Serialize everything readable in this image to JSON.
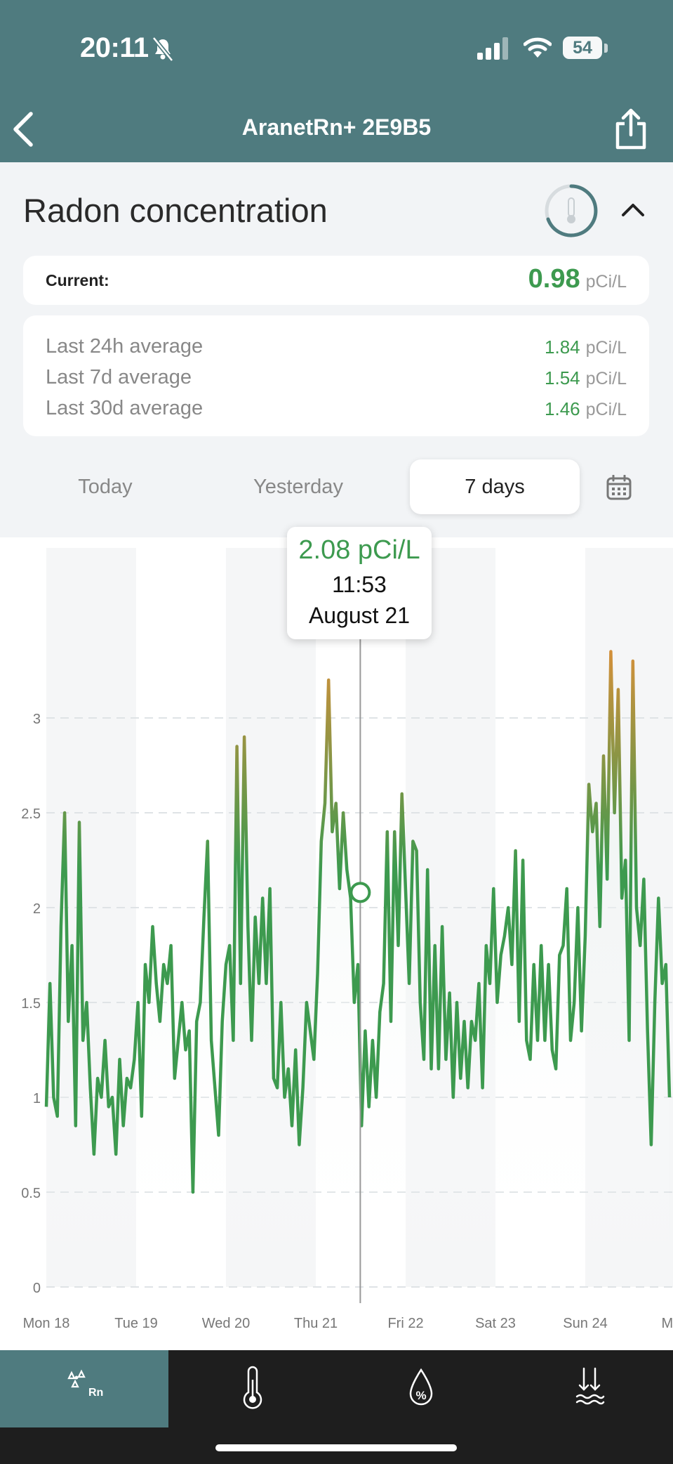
{
  "status_bar": {
    "time": "20:11",
    "battery": "54"
  },
  "header": {
    "title": "AranetRn+ 2E9B5"
  },
  "section": {
    "title": "Radon concentration"
  },
  "current": {
    "label": "Current:",
    "value": "0.98",
    "unit": "pCi/L"
  },
  "averages": [
    {
      "label": "Last 24h average",
      "value": "1.84",
      "unit": "pCi/L"
    },
    {
      "label": "Last 7d average",
      "value": "1.54",
      "unit": "pCi/L"
    },
    {
      "label": "Last 30d average",
      "value": "1.46",
      "unit": "pCi/L"
    }
  ],
  "tabs": {
    "today": "Today",
    "yesterday": "Yesterday",
    "seven_days": "7 days",
    "selected": "7 days"
  },
  "tooltip": {
    "value": "2.08 pCi/L",
    "time": "11:53",
    "date": "August 21"
  },
  "nav": {
    "radon_label": "Rn",
    "selected": "radon"
  },
  "colors": {
    "header": "#4f7b7f",
    "line_green": "#3d9a4f",
    "peak_orange": "#d9903a",
    "nav_dark": "#1e1e1e"
  },
  "icons": [
    "chevron-left-icon",
    "share-icon",
    "bell-slash-icon",
    "signal-icon",
    "wifi-icon",
    "battery-icon",
    "thermometer-gauge-icon",
    "chevron-up-icon",
    "calendar-icon",
    "radon-icon",
    "thermometer-icon",
    "humidity-icon",
    "pressure-icon"
  ],
  "chart_data": {
    "type": "line",
    "x_ticks": [
      "Mon 18",
      "Tue 19",
      "Wed 20",
      "Thu 21",
      "Fri 22",
      "Sat 23",
      "Sun 24",
      "Mon"
    ],
    "y_ticks": [
      "0",
      "0.5",
      "1",
      "1.5",
      "2",
      "2.5",
      "3"
    ],
    "ylim": [
      0,
      3.85
    ],
    "x_unit_note": "days",
    "series": [
      {
        "values": [
          0.95,
          1.6,
          1.0,
          0.9,
          1.9,
          2.5,
          1.4,
          1.8,
          0.85,
          2.45,
          1.3,
          1.5,
          1.05,
          0.7,
          1.1,
          1.0,
          1.3,
          0.95,
          1.0,
          0.7,
          1.2,
          0.85,
          1.1,
          1.05,
          1.2,
          1.5,
          0.9,
          1.7,
          1.5,
          1.9,
          1.6,
          1.4,
          1.7,
          1.6,
          1.8,
          1.1,
          1.3,
          1.5,
          1.25,
          1.35,
          0.5,
          1.4,
          1.5,
          1.95,
          2.35,
          1.3,
          1.05,
          0.8,
          1.4,
          1.7,
          1.8,
          1.3,
          2.85,
          1.6,
          2.9,
          1.9,
          1.3,
          1.95,
          1.6,
          2.05,
          1.6,
          2.1,
          1.1,
          1.05,
          1.5,
          1.0,
          1.15,
          0.85,
          1.25,
          0.75,
          1.05,
          1.5,
          1.35,
          1.2,
          1.65,
          2.35,
          2.55,
          3.2,
          2.4,
          2.55,
          2.1,
          2.5,
          2.2,
          2.05,
          1.5,
          1.7,
          0.85,
          1.35,
          0.95,
          1.3,
          1.0,
          1.45,
          1.6,
          2.4,
          1.4,
          2.4,
          1.8,
          2.6,
          2.1,
          1.6,
          2.35,
          2.3,
          1.5,
          1.2,
          2.2,
          1.15,
          1.8,
          1.15,
          1.9,
          1.2,
          1.55,
          1.0,
          1.5,
          1.1,
          1.4,
          1.05,
          1.4,
          1.3,
          1.6,
          1.05,
          1.8,
          1.6,
          2.1,
          1.5,
          1.75,
          1.85,
          2.0,
          1.7,
          2.3,
          1.4,
          2.25,
          1.3,
          1.2,
          1.7,
          1.3,
          1.8,
          1.3,
          1.7,
          1.25,
          1.15,
          1.75,
          1.8,
          2.1,
          1.3,
          1.5,
          2.0,
          1.35,
          1.85,
          2.65,
          2.4,
          2.55,
          1.9,
          2.8,
          2.15,
          3.35,
          2.5,
          3.15,
          2.05,
          2.25,
          1.3,
          3.3,
          2.0,
          1.8,
          2.15,
          1.35,
          0.75,
          1.5,
          2.05,
          1.6,
          1.7,
          1.0
        ]
      }
    ],
    "selected_point": {
      "value": 2.08,
      "time": "11:53",
      "date": "August 21"
    }
  }
}
